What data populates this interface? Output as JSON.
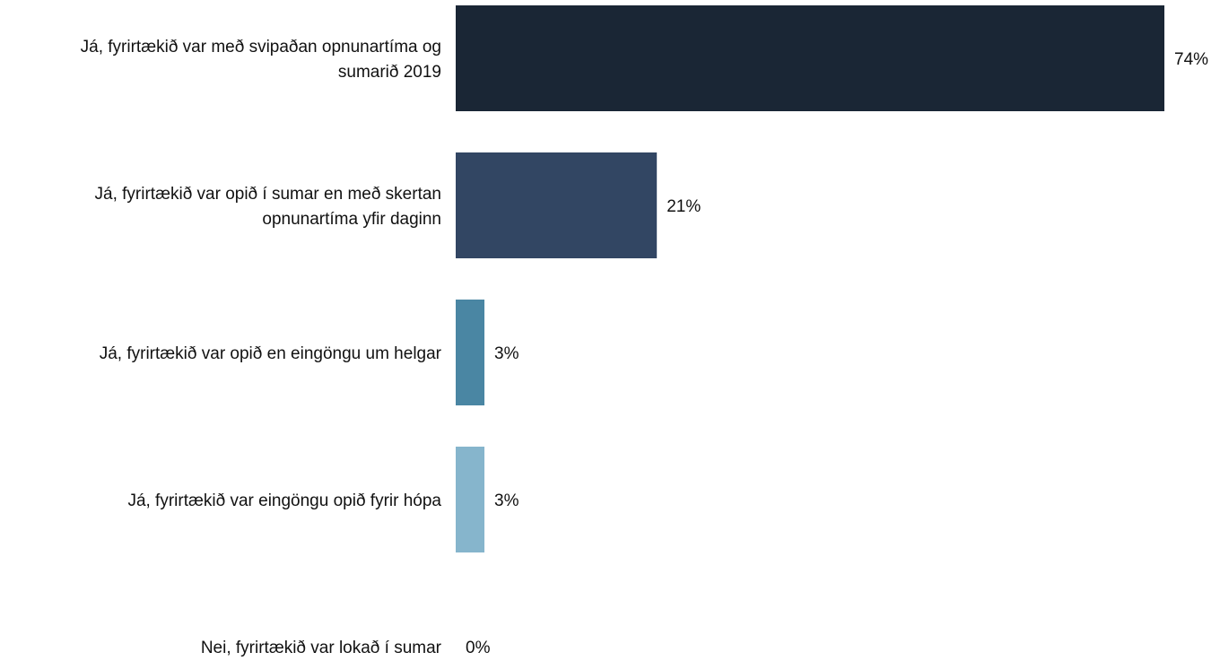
{
  "chart_data": {
    "type": "bar",
    "orientation": "horizontal",
    "categories": [
      [
        "Já, fyrirtækið var með svipaðan opnunartíma og",
        "sumarið 2019"
      ],
      [
        "Já, fyrirtækið var opið í sumar en með skertan",
        "opnunartíma yfir daginn"
      ],
      [
        "Já, fyrirtækið var opið en eingöngu um helgar"
      ],
      [
        "Já, fyrirtækið var eingöngu opið fyrir hópa"
      ],
      [
        "Nei, fyrirtækið var lokað í sumar"
      ]
    ],
    "values": [
      74,
      21,
      3,
      3,
      0
    ],
    "value_labels": [
      "74%",
      "21%",
      "3%",
      "3%",
      "0%"
    ],
    "colors": [
      "#1a2635",
      "#324663",
      "#4a86a3",
      "#86b5cc",
      "#c5dce8"
    ],
    "xlim": [
      0,
      74
    ],
    "grid": false,
    "legend": "none"
  }
}
